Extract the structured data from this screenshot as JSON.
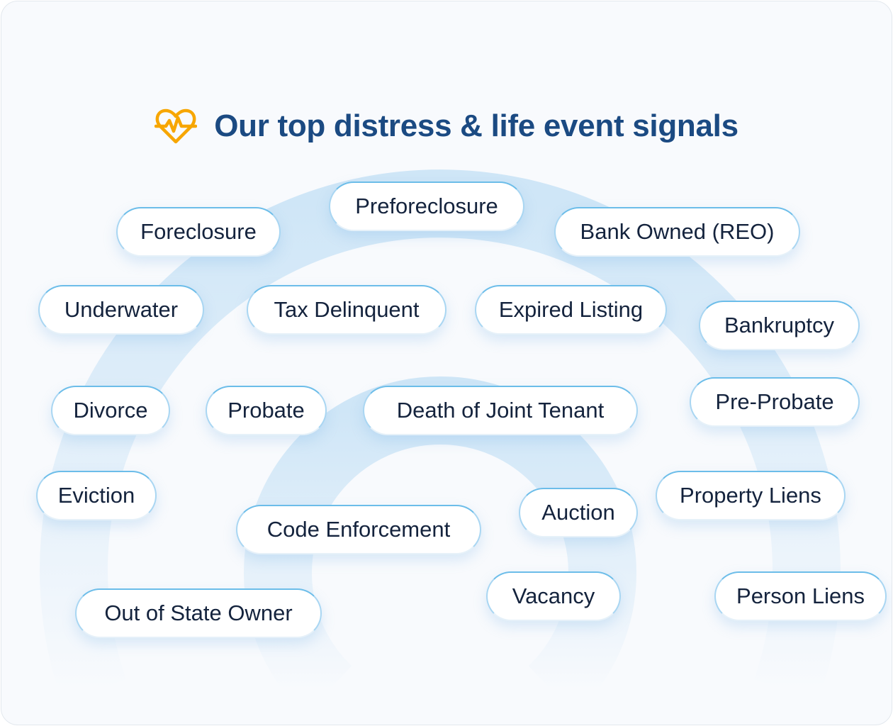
{
  "header": {
    "title": "Our top distress & life event signals",
    "icon": "heart-pulse-icon",
    "icon_color": "#f7a600",
    "title_color": "#1b4a82"
  },
  "signals": [
    "Foreclosure",
    "Preforeclosure",
    "Bank Owned (REO)",
    "Underwater",
    "Tax Delinquent",
    "Expired Listing",
    "Bankruptcy",
    "Divorce",
    "Probate",
    "Death of Joint Tenant",
    "Pre-Probate",
    "Eviction",
    "Code Enforcement",
    "Auction",
    "Property Liens",
    "Out of State Owner",
    "Vacancy",
    "Person Liens"
  ],
  "colors": {
    "accent": "#4aa8e0",
    "ring": "#d6eaf8"
  }
}
